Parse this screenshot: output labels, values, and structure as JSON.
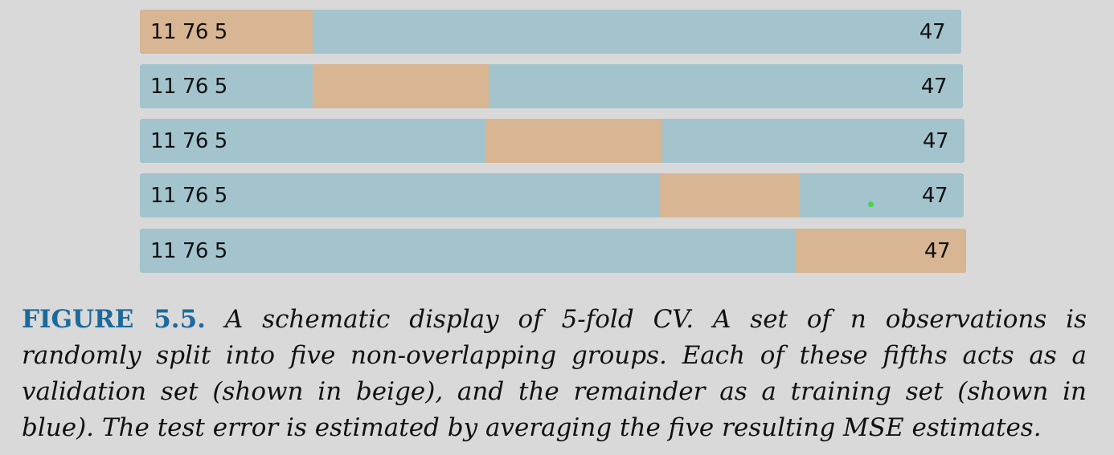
{
  "folds": [
    {
      "left_label": "11 76 5",
      "right_label": "47",
      "validation_fold": 1
    },
    {
      "left_label": "11 76 5",
      "right_label": "47",
      "validation_fold": 2
    },
    {
      "left_label": "11 76 5",
      "right_label": "47",
      "validation_fold": 3
    },
    {
      "left_label": "11 76 5",
      "right_label": "47",
      "validation_fold": 4
    },
    {
      "left_label": "11 76 5",
      "right_label": "47",
      "validation_fold": 5
    }
  ],
  "colors": {
    "training": "#a3c4cd",
    "validation": "#d8b593",
    "figure_label": "#1c6a9b",
    "marker": "#46d34c"
  },
  "caption": {
    "label": "FIGURE 5.5.",
    "lines": [
      "A schematic display of 5-fold CV. A set of n observations is",
      "randomly split into five non-overlapping groups. Each of these fifths acts as a",
      "validation set (shown in beige), and the remainder as a training set (shown in",
      "blue). The test error is estimated by averaging the five resulting MSE estimates."
    ]
  }
}
